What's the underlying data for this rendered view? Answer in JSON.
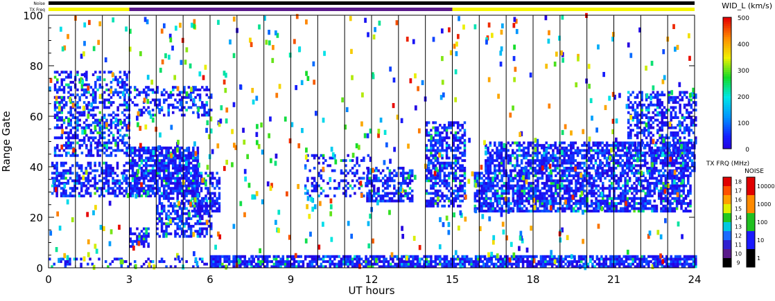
{
  "chart_data": {
    "type": "heatmap",
    "xlabel": "UT hours",
    "ylabel": "Range Gate",
    "x_ticks": [
      "0",
      "3",
      "6",
      "9",
      "12",
      "15",
      "18",
      "21",
      "24"
    ],
    "y_ticks": [
      "0",
      "20",
      "40",
      "60",
      "80",
      "100"
    ],
    "xlim": [
      0,
      24
    ],
    "ylim": [
      0,
      100
    ],
    "grid": "vertical lines every hour",
    "top_strips": {
      "noise_label": "Noise",
      "freq_label": "TX Freq",
      "freq_segments": [
        {
          "start": 0,
          "end": 3,
          "color": "#f5f500"
        },
        {
          "start": 3,
          "end": 15,
          "color": "#5a1a8a"
        },
        {
          "start": 15,
          "end": 24,
          "color": "#f5f500"
        }
      ]
    },
    "colorbar_width": {
      "title": "WID_L (km/s)",
      "ticks": [
        "0",
        "100",
        "200",
        "300",
        "400",
        "500"
      ],
      "min": 0,
      "max": 500
    },
    "colorbar_freq": {
      "title": "TX FRQ (MHz)",
      "ticks": [
        "9",
        "10",
        "11",
        "12",
        "13",
        "14",
        "15",
        "16",
        "17",
        "18"
      ]
    },
    "colorbar_noise": {
      "title": "NOISE",
      "ticks": [
        "1",
        "10",
        "100",
        "1000",
        "10000"
      ]
    },
    "bands": [
      {
        "t0": 0.1,
        "t1": 3.0,
        "g0": 28,
        "g1": 42,
        "density": 0.55
      },
      {
        "t0": 0.2,
        "t1": 3.0,
        "g0": 44,
        "g1": 78,
        "density": 0.45
      },
      {
        "t0": 3.0,
        "t1": 5.5,
        "g0": 28,
        "g1": 48,
        "density": 0.8
      },
      {
        "t0": 3.0,
        "t1": 6.0,
        "g0": 60,
        "g1": 72,
        "density": 0.35
      },
      {
        "t0": 4.0,
        "t1": 6.0,
        "g0": 12,
        "g1": 28,
        "density": 0.55
      },
      {
        "t0": 5.3,
        "t1": 6.3,
        "g0": 22,
        "g1": 38,
        "density": 0.5
      },
      {
        "t0": 3.0,
        "t1": 3.7,
        "g0": 8,
        "g1": 16,
        "density": 0.6
      },
      {
        "t0": 9.5,
        "t1": 12.0,
        "g0": 28,
        "g1": 45,
        "density": 0.3
      },
      {
        "t0": 11.8,
        "t1": 13.5,
        "g0": 26,
        "g1": 40,
        "density": 0.55
      },
      {
        "t0": 14.0,
        "t1": 15.5,
        "g0": 24,
        "g1": 58,
        "density": 0.6
      },
      {
        "t0": 15.8,
        "t1": 23.8,
        "g0": 22,
        "g1": 38,
        "density": 0.7
      },
      {
        "t0": 16.2,
        "t1": 24.0,
        "g0": 38,
        "g1": 50,
        "density": 0.65
      },
      {
        "t0": 21.5,
        "t1": 24.0,
        "g0": 44,
        "g1": 70,
        "density": 0.45
      },
      {
        "t0": 6.0,
        "t1": 24.0,
        "g0": 0,
        "g1": 5,
        "density": 0.8
      },
      {
        "t0": 0.0,
        "t1": 6.0,
        "g0": 0,
        "g1": 4,
        "density": 0.25
      }
    ],
    "scatter_count": 650
  }
}
